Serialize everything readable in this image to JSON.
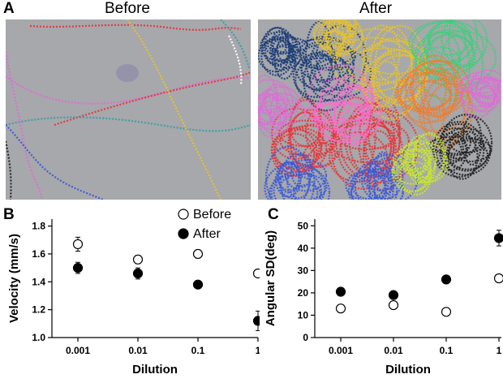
{
  "figure": {
    "panel_a": {
      "letter": "A",
      "before_title": "Before",
      "after_title": "After"
    },
    "panel_b": {
      "letter": "B"
    },
    "panel_c": {
      "letter": "C"
    }
  },
  "track_colors": [
    "#e8343a",
    "#e06ad8",
    "#e8c22a",
    "#3c9ca6",
    "#3a5ad8",
    "#f07c2a",
    "#1c3c78",
    "#3ad07a",
    "#c8e82a",
    "#222222",
    "#ff69d2",
    "#ffffff"
  ],
  "chart_data": [
    {
      "type": "scatter",
      "panel": "B",
      "xlabel": "Dilution",
      "ylabel": "Velocity (mm/s)",
      "x_scale": "log",
      "categories": [
        "0.001",
        "0.01",
        "0.1",
        "1"
      ],
      "ylim": [
        1.0,
        1.85
      ],
      "yticks": [
        "1.0",
        "1.2",
        "1.4",
        "1.6",
        "1.8"
      ],
      "legend": {
        "position": "top-right",
        "entries": [
          "Before",
          "After"
        ]
      },
      "series": [
        {
          "name": "Before",
          "marker": "open-circle",
          "values": [
            1.67,
            1.56,
            1.6,
            1.46
          ],
          "errors": [
            0.05,
            0.03,
            0.03,
            0.02
          ]
        },
        {
          "name": "After",
          "marker": "filled-circle",
          "values": [
            1.5,
            1.46,
            1.38,
            1.12
          ],
          "errors": [
            0.04,
            0.04,
            0.01,
            0.07
          ]
        }
      ]
    },
    {
      "type": "scatter",
      "panel": "C",
      "xlabel": "Dilution",
      "ylabel": "Angular SD(deg)",
      "x_scale": "log",
      "categories": [
        "0.001",
        "0.01",
        "0.1",
        "1"
      ],
      "ylim": [
        0,
        53
      ],
      "yticks": [
        "0",
        "10",
        "20",
        "30",
        "40",
        "50"
      ],
      "series": [
        {
          "name": "Before",
          "marker": "open-circle",
          "values": [
            13,
            14.5,
            11.5,
            26.5
          ],
          "errors": [
            1.5,
            1.2,
            1.3,
            1.5
          ]
        },
        {
          "name": "After",
          "marker": "filled-circle",
          "values": [
            20.5,
            19,
            26,
            44.5
          ],
          "errors": [
            1.0,
            1.0,
            1.0,
            3.5
          ]
        }
      ]
    }
  ]
}
